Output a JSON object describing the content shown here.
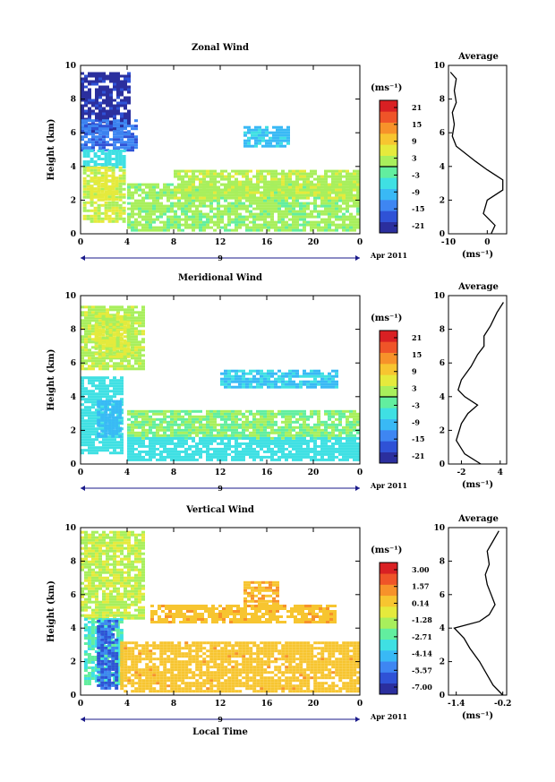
{
  "chart_data": [
    {
      "type": "heatmap",
      "title": "Zonal Wind",
      "ylabel": "Height (km)",
      "xlabel": "",
      "xlim": [
        0,
        24
      ],
      "ylim": [
        0,
        10
      ],
      "x_ticks": [
        "0",
        "4",
        "8",
        "12",
        "16",
        "20",
        "0"
      ],
      "y_ticks": [
        "0",
        "2",
        "4",
        "6",
        "8",
        "10"
      ],
      "date_marker": "9",
      "date_label": "Apr 2011",
      "colorbar": {
        "unit": "(ms⁻¹)",
        "min": -24,
        "max": 24,
        "labels": [
          "21",
          "15",
          "9",
          "3",
          "-3",
          "-9",
          "-15",
          "-21"
        ],
        "contour_level": 0
      },
      "regions": [
        {
          "x0": 0,
          "x1": 4.2,
          "y0": 6.0,
          "y1": 9.6,
          "value": -21
        },
        {
          "x0": 0,
          "x1": 4.8,
          "y0": 5.0,
          "y1": 6.8,
          "value": -15
        },
        {
          "x0": 0.2,
          "x1": 3.8,
          "y0": 4.0,
          "y1": 5.0,
          "value": -6
        },
        {
          "x0": 0.2,
          "x1": 3.8,
          "y0": 0.8,
          "y1": 4.0,
          "value": 4
        },
        {
          "x0": 0.8,
          "x1": 3.2,
          "y0": 2.0,
          "y1": 3.4,
          "value": 6
        },
        {
          "x0": 4,
          "x1": 24,
          "y0": 0.2,
          "y1": 3.0,
          "value": 1
        },
        {
          "x0": 8,
          "x1": 24,
          "y0": 2.2,
          "y1": 3.8,
          "value": 3
        },
        {
          "x0": 14,
          "x1": 18,
          "y0": 5.2,
          "y1": 6.4,
          "value": -9
        }
      ],
      "average_profile": {
        "title": "Average",
        "xlabel": "(ms⁻¹)",
        "x_ticks": [
          "-10",
          "0"
        ],
        "xlim": [
          -10,
          5
        ],
        "ylim": [
          0,
          10
        ],
        "x": [
          1,
          2,
          -1,
          0,
          4,
          4,
          2,
          0,
          -3,
          -8,
          -9,
          -8.5,
          -9,
          -8,
          -8.5,
          -8,
          -9.5
        ],
        "y": [
          0,
          0.5,
          1.2,
          2,
          2.6,
          3.2,
          3.5,
          3.8,
          4.3,
          5.2,
          5.8,
          6.5,
          7.2,
          7.8,
          8.5,
          9.2,
          9.6
        ]
      }
    },
    {
      "type": "heatmap",
      "title": "Meridional Wind",
      "ylabel": "Height (km)",
      "xlabel": "",
      "xlim": [
        0,
        24
      ],
      "ylim": [
        0,
        10
      ],
      "x_ticks": [
        "0",
        "4",
        "8",
        "12",
        "16",
        "20",
        "0"
      ],
      "y_ticks": [
        "0",
        "2",
        "4",
        "6",
        "8",
        "10"
      ],
      "date_marker": "9",
      "date_label": "Apr 2011",
      "colorbar": {
        "unit": "(ms⁻¹)",
        "min": -24,
        "max": 24,
        "labels": [
          "21",
          "15",
          "9",
          "3",
          "-3",
          "-9",
          "-15",
          "-21"
        ],
        "contour_level": 0
      },
      "regions": [
        {
          "x0": 0,
          "x1": 5.4,
          "y0": 5.6,
          "y1": 9.4,
          "value": 3
        },
        {
          "x0": 1.2,
          "x1": 4,
          "y0": 6.4,
          "y1": 9.0,
          "value": 5
        },
        {
          "x0": 0,
          "x1": 3.6,
          "y0": 0.6,
          "y1": 5.2,
          "value": -6
        },
        {
          "x0": 1.4,
          "x1": 3.4,
          "y0": 1.6,
          "y1": 3.8,
          "value": -10
        },
        {
          "x0": 4,
          "x1": 24,
          "y0": 1.6,
          "y1": 3.2,
          "value": 0
        },
        {
          "x0": 4,
          "x1": 24,
          "y0": 0.3,
          "y1": 1.6,
          "value": -6
        },
        {
          "x0": 12,
          "x1": 22,
          "y0": 4.6,
          "y1": 5.6,
          "value": -8
        }
      ],
      "average_profile": {
        "title": "Average",
        "xlabel": "(ms⁻¹)",
        "x_ticks": [
          "-2",
          "4"
        ],
        "xlim": [
          -4,
          5
        ],
        "ylim": [
          0,
          10
        ],
        "x": [
          1,
          -1.5,
          -2.8,
          -2,
          -1,
          0.5,
          -1.5,
          -2.5,
          -2,
          -0.5,
          0.5,
          1.5,
          1.5,
          2.5,
          3.5,
          4.5
        ],
        "y": [
          0,
          0.6,
          1.4,
          2.4,
          3.0,
          3.5,
          4.0,
          4.4,
          5.0,
          5.8,
          6.5,
          7.0,
          7.6,
          8.2,
          9.0,
          9.6
        ]
      }
    },
    {
      "type": "heatmap",
      "title": "Vertical Wind",
      "ylabel": "Height (km)",
      "xlabel": "Local Time",
      "xlim": [
        0,
        24
      ],
      "ylim": [
        0,
        10
      ],
      "x_ticks": [
        "0",
        "4",
        "8",
        "12",
        "16",
        "20",
        "0"
      ],
      "y_ticks": [
        "0",
        "2",
        "4",
        "6",
        "8",
        "10"
      ],
      "date_marker": "9",
      "date_label": "Apr 2011",
      "colorbar": {
        "unit": "(ms⁻¹)",
        "min": -8.57,
        "max": 4.57,
        "labels": [
          "3.00",
          "1.57",
          "0.14",
          "-1.28",
          "-2.71",
          "-4.14",
          "-5.57",
          "-7.00"
        ]
      },
      "regions": [
        {
          "x0": 0,
          "x1": 5.4,
          "y0": 4.6,
          "y1": 9.8,
          "value": -1.0
        },
        {
          "x0": 0.3,
          "x1": 3.6,
          "y0": 0.6,
          "y1": 4.6,
          "value": -3.0
        },
        {
          "x0": 1.4,
          "x1": 3.2,
          "y0": 0.4,
          "y1": 4.5,
          "value": -6.5
        },
        {
          "x0": 3.4,
          "x1": 24,
          "y0": 0.2,
          "y1": 3.2,
          "value": 0.8
        },
        {
          "x0": 6,
          "x1": 22,
          "y0": 4.4,
          "y1": 5.4,
          "value": 0.9
        },
        {
          "x0": 14,
          "x1": 17,
          "y0": 5.4,
          "y1": 6.8,
          "value": 1.1
        }
      ],
      "average_profile": {
        "title": "Average",
        "xlabel": "(ms⁻¹)",
        "x_ticks": [
          "-1.4",
          "-0.2"
        ],
        "xlim": [
          -1.6,
          -0.1
        ],
        "ylim": [
          0,
          10
        ],
        "x": [
          -0.2,
          -0.45,
          -0.6,
          -0.8,
          -1.05,
          -1.2,
          -1.45,
          -0.8,
          -0.55,
          -0.4,
          -0.5,
          -0.6,
          -0.65,
          -0.55,
          -0.6,
          -0.45,
          -0.3
        ],
        "y": [
          0,
          0.6,
          1.2,
          2.0,
          2.8,
          3.4,
          4.0,
          4.4,
          4.8,
          5.4,
          6.0,
          6.6,
          7.2,
          7.8,
          8.6,
          9.2,
          9.8
        ]
      }
    }
  ]
}
